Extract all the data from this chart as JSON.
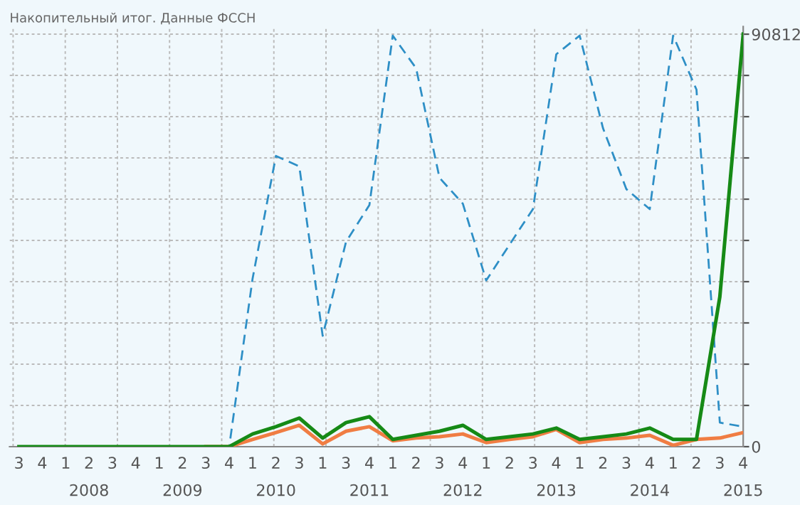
{
  "chart_data": {
    "type": "line",
    "title": "Накопительный итог. Данные ФССН",
    "categories": [
      "3",
      "4",
      "1",
      "2\n2008",
      "3",
      "4",
      "1",
      "2\n2009",
      "3",
      "4",
      "1",
      "2\n2010",
      "3",
      "1",
      "3",
      "4\n2011",
      "1",
      "2",
      "3",
      "4\n2012",
      "1",
      "2",
      "3",
      "4\n2013",
      "1",
      "2",
      "3",
      "4\n2014",
      "1",
      "2",
      "3",
      "4\n2015"
    ],
    "series": [
      {
        "color": "#2e8fc6",
        "line_style": "dashed",
        "values": [
          null,
          null,
          null,
          null,
          null,
          null,
          null,
          null,
          0,
          0,
          37000,
          64000,
          61700,
          24400,
          45100,
          53200,
          90500,
          83300,
          59200,
          53500,
          36600,
          44500,
          52300,
          86400,
          90500,
          70100,
          56700,
          52300,
          90500,
          78600,
          5300,
          4400
        ]
      },
      {
        "color": "#f07d43",
        "values": [
          null,
          null,
          null,
          null,
          null,
          null,
          null,
          null,
          0,
          0,
          1600,
          3100,
          4700,
          600,
          3400,
          4400,
          1300,
          1900,
          2200,
          2800,
          900,
          1600,
          2200,
          3800,
          900,
          1600,
          1900,
          2500,
          300,
          1600,
          1900,
          3100
        ]
      },
      {
        "color": "#168a16",
        "values": [
          0,
          0,
          0,
          0,
          0,
          0,
          0,
          0,
          0,
          0,
          2800,
          4400,
          6300,
          1900,
          5300,
          6600,
          1600,
          2500,
          3400,
          4700,
          1600,
          2200,
          2800,
          4100,
          1600,
          2200,
          2800,
          4100,
          1600,
          1600,
          33000,
          90812
        ]
      }
    ],
    "ylim": [
      0,
      92500
    ],
    "yticks": [
      0,
      {
        "value": 9081,
        "label": null
      },
      {
        "value": 18162,
        "label": null
      },
      {
        "value": 27244,
        "label": null
      },
      {
        "value": 36325,
        "label": null
      },
      {
        "value": 45406,
        "label": null
      },
      {
        "value": 54487,
        "label": null
      },
      {
        "value": 63568,
        "label": null
      },
      {
        "value": 72650,
        "label": null
      },
      {
        "value": 81731,
        "label": null
      },
      90812
    ],
    "grid": true,
    "marker": "none"
  }
}
